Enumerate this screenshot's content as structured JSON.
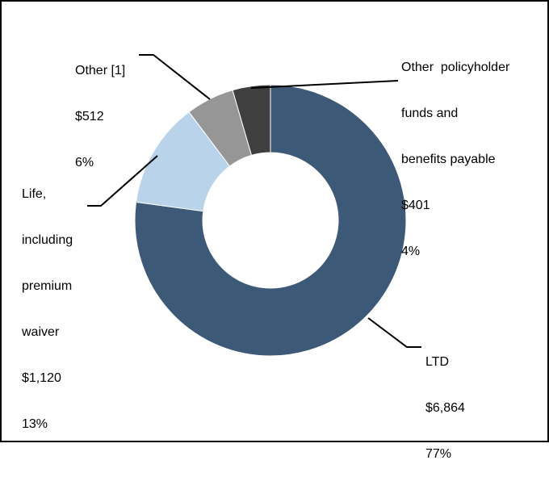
{
  "chart_data": {
    "type": "pie",
    "donut": true,
    "title": "",
    "slices": [
      {
        "label_lines": [
          "LTD"
        ],
        "value_text": "$6,864",
        "percent_text": "77%",
        "value": 6864,
        "color": "#3c5a78"
      },
      {
        "label_lines": [
          "Life,",
          "including",
          "premium",
          "waiver"
        ],
        "value_text": "$1,120",
        "percent_text": "13%",
        "value": 1120,
        "color": "#b8d3ea"
      },
      {
        "label_lines": [
          "Other [1]"
        ],
        "value_text": "$512",
        "percent_text": "6%",
        "value": 512,
        "color": "#969696"
      },
      {
        "label_lines": [
          "Other  policyholder",
          "funds and",
          "benefits payable"
        ],
        "value_text": "$401",
        "percent_text": "4%",
        "value": 401,
        "color": "#3f3f3f"
      }
    ]
  }
}
